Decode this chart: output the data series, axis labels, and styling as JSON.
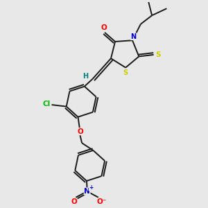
{
  "bg_color": "#e8e8e8",
  "bond_color": "#1a1a1a",
  "atom_colors": {
    "O": "#ff0000",
    "N": "#0000cc",
    "S": "#cccc00",
    "Cl": "#00bb00",
    "H": "#008080",
    "C": "#1a1a1a"
  },
  "lw": 1.4,
  "fontsize": 7.0
}
